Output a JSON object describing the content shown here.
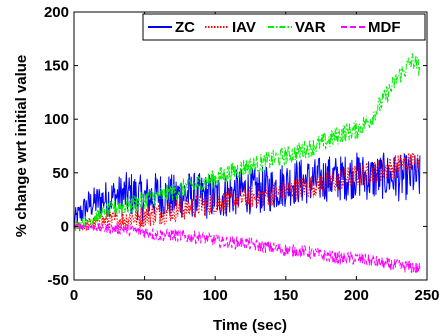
{
  "chart_data": {
    "type": "line",
    "xlabel": "Time (sec)",
    "ylabel": "% change wrt initial value",
    "xlim": [
      0,
      250
    ],
    "ylim": [
      -50,
      200
    ],
    "xticks": [
      0,
      50,
      100,
      150,
      200,
      250
    ],
    "yticks": [
      -50,
      0,
      50,
      100,
      150,
      200
    ],
    "grid": false,
    "legend_position": "top-right",
    "x": [
      0,
      10,
      20,
      30,
      40,
      50,
      60,
      70,
      80,
      90,
      100,
      110,
      120,
      130,
      140,
      150,
      160,
      170,
      180,
      190,
      200,
      210,
      220,
      230,
      240,
      245
    ],
    "series": [
      {
        "name": "ZC",
        "color": "#0000ff",
        "dash": "solid",
        "values": [
          5,
          20,
          25,
          28,
          30,
          25,
          30,
          27,
          30,
          28,
          28,
          30,
          33,
          33,
          35,
          40,
          42,
          42,
          45,
          45,
          48,
          45,
          47,
          45,
          47,
          45
        ],
        "noise": 22
      },
      {
        "name": "IAV",
        "color": "#ff0000",
        "dash": "dotted",
        "values": [
          0,
          2,
          5,
          5,
          8,
          10,
          12,
          15,
          17,
          20,
          22,
          24,
          26,
          28,
          30,
          33,
          36,
          38,
          41,
          44,
          47,
          50,
          53,
          57,
          60,
          62
        ],
        "noise": 11
      },
      {
        "name": "VAR",
        "color": "#00ee00",
        "dash": "dashdot",
        "values": [
          0,
          5,
          12,
          18,
          20,
          25,
          28,
          32,
          37,
          40,
          45,
          50,
          55,
          58,
          62,
          66,
          70,
          75,
          80,
          87,
          90,
          100,
          120,
          140,
          155,
          148
        ],
        "noise": 9
      },
      {
        "name": "MDF",
        "color": "#ff00ff",
        "dash": "dashed",
        "values": [
          0,
          0,
          -2,
          -2,
          -3,
          -5,
          -8,
          -8,
          -10,
          -10,
          -13,
          -15,
          -15,
          -18,
          -20,
          -22,
          -23,
          -25,
          -28,
          -30,
          -30,
          -32,
          -35,
          -37,
          -38,
          -40
        ],
        "noise": 6
      }
    ]
  }
}
